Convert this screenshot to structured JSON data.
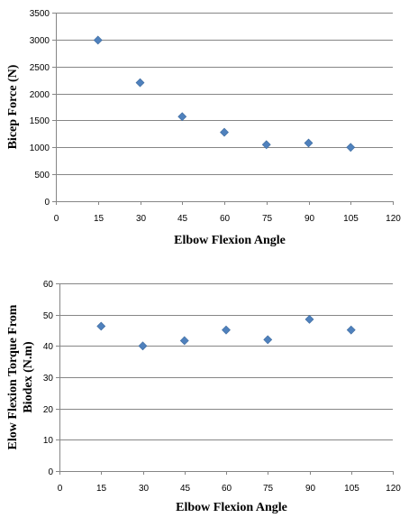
{
  "chart_data": [
    {
      "type": "scatter",
      "xlabel": "Elbow Flexion Angle",
      "ylabel": "Bicep Force (N)",
      "xlim": [
        0,
        120
      ],
      "ylim": [
        0,
        3500
      ],
      "xticks": [
        0,
        15,
        30,
        45,
        60,
        75,
        90,
        105,
        120
      ],
      "yticks": [
        0,
        500,
        1000,
        1500,
        2000,
        2500,
        3000,
        3500
      ],
      "grid": true,
      "marker": "diamond",
      "color": "#4f81bd",
      "series": [
        {
          "x": [
            15,
            30,
            45,
            60,
            75,
            90,
            105
          ],
          "y": [
            2990,
            2200,
            1570,
            1280,
            1050,
            1080,
            1000
          ]
        }
      ]
    },
    {
      "type": "scatter",
      "xlabel": "Elbow Flexion Angle",
      "ylabel": [
        "Elow Flexion Torque From",
        "Biodex (N.m)"
      ],
      "xlim": [
        0,
        120
      ],
      "ylim": [
        0,
        60
      ],
      "xticks": [
        0,
        15,
        30,
        45,
        60,
        75,
        90,
        105,
        120
      ],
      "yticks": [
        0,
        10,
        20,
        30,
        40,
        50,
        60
      ],
      "grid": true,
      "marker": "diamond",
      "color": "#4f81bd",
      "series": [
        {
          "x": [
            15,
            30,
            45,
            60,
            75,
            90,
            105
          ],
          "y": [
            46.3,
            40.0,
            41.7,
            45.1,
            42.0,
            48.5,
            45.1
          ]
        }
      ]
    }
  ]
}
